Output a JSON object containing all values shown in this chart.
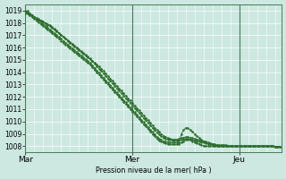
{
  "bg_color": "#cce8e0",
  "grid_major_color": "#ffffff",
  "grid_minor_color": "#b8d8d0",
  "line_color": "#2d6e2d",
  "marker_color": "#2d6e2d",
  "xlabel_text": "Pression niveau de la mer( hPa )",
  "xtick_labels": [
    "Mar",
    "Mer",
    "Jeu"
  ],
  "xtick_positions": [
    0,
    48,
    96
  ],
  "xlim": [
    0,
    115
  ],
  "ylim": [
    1007.5,
    1019.5
  ],
  "yticks": [
    1008,
    1009,
    1010,
    1011,
    1012,
    1013,
    1014,
    1015,
    1016,
    1017,
    1018,
    1019
  ],
  "series": [
    [
      1018.8,
      1018.75,
      1018.65,
      1018.55,
      1018.45,
      1018.35,
      1018.25,
      1018.15,
      1018.05,
      1017.95,
      1017.85,
      1017.75,
      1017.6,
      1017.45,
      1017.3,
      1017.15,
      1017.0,
      1016.85,
      1016.7,
      1016.55,
      1016.4,
      1016.25,
      1016.1,
      1015.95,
      1015.8,
      1015.65,
      1015.5,
      1015.35,
      1015.2,
      1015.05,
      1014.9,
      1014.75,
      1014.6,
      1014.45,
      1014.3,
      1014.1,
      1013.9,
      1013.7,
      1013.5,
      1013.3,
      1013.1,
      1012.9,
      1012.7,
      1012.5,
      1012.3,
      1012.1,
      1011.9,
      1011.7,
      1011.5,
      1011.3,
      1011.1,
      1010.9,
      1010.7,
      1010.5,
      1010.3,
      1010.1,
      1009.9,
      1009.7,
      1009.5,
      1009.3,
      1009.15,
      1009.0,
      1008.85,
      1008.75,
      1008.65,
      1008.6,
      1008.55,
      1008.55,
      1008.55,
      1008.6,
      1008.65,
      1008.7,
      1008.75,
      1008.75,
      1008.7,
      1008.65,
      1008.6,
      1008.55,
      1008.5,
      1008.45,
      1008.4,
      1008.35,
      1008.3,
      1008.25,
      1008.2,
      1008.15,
      1008.1,
      1008.1,
      1008.1,
      1008.1,
      1008.1,
      1008.05,
      1008.0,
      1008.0,
      1008.0,
      1008.0,
      1008.0,
      1008.0,
      1008.0,
      1008.0,
      1008.0,
      1008.0,
      1008.0,
      1008.0,
      1008.0,
      1008.0,
      1008.0,
      1008.0,
      1008.0,
      1008.0,
      1008.0,
      1008.0,
      1007.95,
      1007.95,
      1007.95
    ],
    [
      1018.9,
      1018.85,
      1018.7,
      1018.6,
      1018.5,
      1018.4,
      1018.3,
      1018.2,
      1018.1,
      1018.0,
      1017.9,
      1017.8,
      1017.65,
      1017.5,
      1017.35,
      1017.2,
      1017.05,
      1016.9,
      1016.75,
      1016.6,
      1016.45,
      1016.3,
      1016.15,
      1016.0,
      1015.85,
      1015.7,
      1015.55,
      1015.4,
      1015.25,
      1015.1,
      1014.9,
      1014.7,
      1014.5,
      1014.3,
      1014.1,
      1013.9,
      1013.7,
      1013.5,
      1013.3,
      1013.1,
      1012.9,
      1012.7,
      1012.5,
      1012.3,
      1012.1,
      1011.9,
      1011.7,
      1011.5,
      1011.3,
      1011.1,
      1010.9,
      1010.7,
      1010.5,
      1010.3,
      1010.1,
      1009.9,
      1009.7,
      1009.5,
      1009.3,
      1009.1,
      1008.95,
      1008.8,
      1008.7,
      1008.6,
      1008.55,
      1008.5,
      1008.48,
      1008.46,
      1008.46,
      1008.48,
      1008.52,
      1008.56,
      1008.6,
      1008.58,
      1008.54,
      1008.5,
      1008.46,
      1008.42,
      1008.38,
      1008.34,
      1008.3,
      1008.26,
      1008.22,
      1008.18,
      1008.14,
      1008.1,
      1008.06,
      1008.02,
      1008.0,
      1008.0,
      1008.0,
      1008.0,
      1008.0,
      1008.0,
      1008.0,
      1008.0,
      1008.0,
      1008.0,
      1008.0,
      1008.0,
      1008.0,
      1008.0,
      1008.0,
      1008.0,
      1008.0,
      1008.0,
      1008.0,
      1008.0,
      1008.0,
      1008.0,
      1008.0,
      1008.0,
      1007.95,
      1007.95,
      1007.95
    ],
    [
      1019.0,
      1018.95,
      1018.8,
      1018.65,
      1018.5,
      1018.35,
      1018.2,
      1018.05,
      1017.9,
      1017.75,
      1017.6,
      1017.45,
      1017.3,
      1017.15,
      1017.0,
      1016.85,
      1016.7,
      1016.55,
      1016.4,
      1016.25,
      1016.1,
      1015.95,
      1015.8,
      1015.65,
      1015.5,
      1015.35,
      1015.2,
      1015.05,
      1014.9,
      1014.75,
      1014.55,
      1014.35,
      1014.15,
      1013.95,
      1013.75,
      1013.55,
      1013.35,
      1013.15,
      1012.95,
      1012.75,
      1012.55,
      1012.35,
      1012.15,
      1011.95,
      1011.75,
      1011.55,
      1011.35,
      1011.15,
      1010.95,
      1010.75,
      1010.55,
      1010.35,
      1010.15,
      1009.95,
      1009.75,
      1009.55,
      1009.35,
      1009.15,
      1008.95,
      1008.75,
      1008.6,
      1008.5,
      1008.4,
      1008.35,
      1008.32,
      1008.3,
      1008.28,
      1008.28,
      1008.3,
      1008.34,
      1009.0,
      1009.3,
      1009.5,
      1009.45,
      1009.3,
      1009.15,
      1009.0,
      1008.85,
      1008.7,
      1008.55,
      1008.4,
      1008.3,
      1008.2,
      1008.15,
      1008.1,
      1008.05,
      1008.0,
      1008.0,
      1008.0,
      1008.0,
      1008.0,
      1008.0,
      1008.0,
      1008.0,
      1008.0,
      1008.0,
      1008.0,
      1008.0,
      1008.0,
      1008.0,
      1008.0,
      1008.0,
      1008.0,
      1008.0,
      1008.0,
      1008.0,
      1008.0,
      1008.0,
      1008.0,
      1008.0,
      1008.0,
      1008.0,
      1007.95,
      1007.95,
      1007.95
    ],
    [
      1018.85,
      1018.8,
      1018.65,
      1018.5,
      1018.35,
      1018.2,
      1018.05,
      1017.9,
      1017.75,
      1017.6,
      1017.45,
      1017.3,
      1017.15,
      1017.0,
      1016.85,
      1016.7,
      1016.55,
      1016.4,
      1016.25,
      1016.1,
      1015.95,
      1015.8,
      1015.65,
      1015.5,
      1015.35,
      1015.2,
      1015.05,
      1014.9,
      1014.75,
      1014.6,
      1014.4,
      1014.2,
      1014.0,
      1013.8,
      1013.6,
      1013.4,
      1013.2,
      1013.0,
      1012.8,
      1012.6,
      1012.4,
      1012.2,
      1012.0,
      1011.8,
      1011.6,
      1011.4,
      1011.2,
      1011.0,
      1010.8,
      1010.6,
      1010.4,
      1010.2,
      1010.0,
      1009.8,
      1009.6,
      1009.4,
      1009.2,
      1009.0,
      1008.8,
      1008.6,
      1008.45,
      1008.35,
      1008.28,
      1008.22,
      1008.18,
      1008.15,
      1008.14,
      1008.14,
      1008.16,
      1008.2,
      1008.28,
      1008.38,
      1008.5,
      1008.55,
      1008.5,
      1008.42,
      1008.34,
      1008.26,
      1008.18,
      1008.1,
      1008.05,
      1008.02,
      1008.0,
      1008.0,
      1008.0,
      1008.0,
      1008.0,
      1008.0,
      1008.0,
      1008.0,
      1008.0,
      1008.0,
      1008.0,
      1008.0,
      1008.0,
      1008.0,
      1008.0,
      1008.0,
      1008.0,
      1008.0,
      1008.0,
      1008.0,
      1008.0,
      1008.0,
      1008.0,
      1008.0,
      1008.0,
      1008.0,
      1008.0,
      1008.0,
      1008.0,
      1008.0,
      1007.95,
      1007.95,
      1007.95
    ]
  ]
}
